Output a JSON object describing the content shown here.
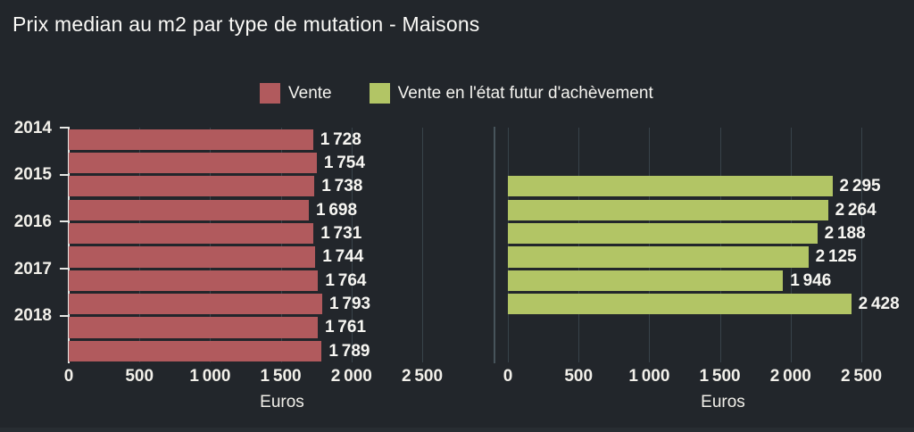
{
  "chart_data": {
    "type": "bar",
    "orientation": "horizontal",
    "title": "Prix median au m2 par type de mutation - Maisons",
    "xlabel": "Euros",
    "xlim": [
      0,
      2500
    ],
    "x_tick_values": [
      0,
      500,
      1000,
      1500,
      2000,
      2500
    ],
    "x_tick_labels": [
      "0",
      "500",
      "1 000",
      "1 500",
      "2 000",
      "2 500"
    ],
    "year_labels": [
      "2014",
      "2015",
      "2016",
      "2017",
      "2018"
    ],
    "rows_per_year": 2,
    "grid": "vertical",
    "legend_position": "top",
    "series": [
      {
        "name": "Vente",
        "color": "#b15a5d",
        "panel": "left",
        "values": [
          1728,
          1754,
          1738,
          1698,
          1731,
          1744,
          1764,
          1793,
          1761,
          1789
        ],
        "value_labels": [
          "1 728",
          "1 754",
          "1 738",
          "1 698",
          "1 731",
          "1 744",
          "1 764",
          "1 793",
          "1 761",
          "1 789"
        ]
      },
      {
        "name": "Vente en l'état futur d'achèvement",
        "color": "#b2c565",
        "panel": "right",
        "values": [
          null,
          null,
          2295,
          2264,
          2188,
          2125,
          1946,
          2428,
          null,
          null
        ],
        "value_labels": [
          null,
          null,
          "2 295",
          "2 264",
          "2 188",
          "2 125",
          "1 946",
          "2 428",
          null,
          null
        ]
      }
    ]
  },
  "colors": {
    "background": "#22262b",
    "gridline": "#38434a",
    "axis_left": "#e8e8e5",
    "axis_right": "#47545b",
    "text": "#f5f4f0"
  }
}
